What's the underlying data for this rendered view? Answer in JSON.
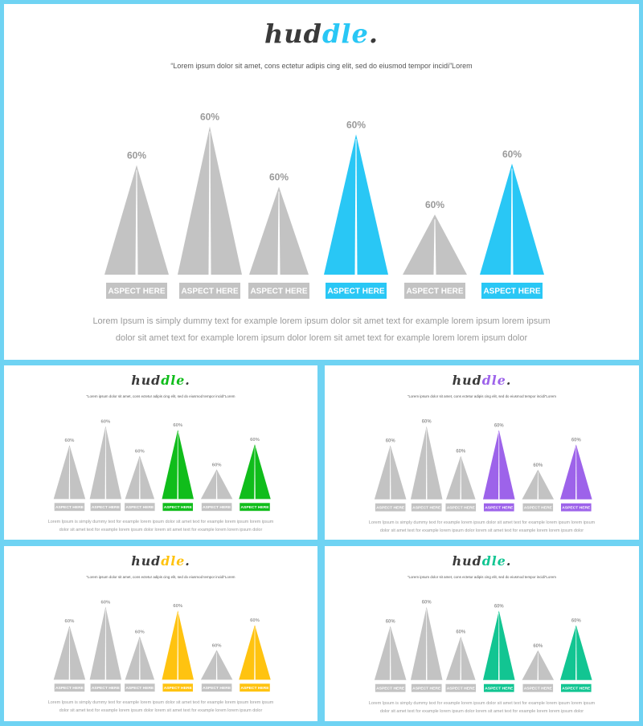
{
  "brand": {
    "prefix": "hud",
    "suffix": "dle",
    "dot": "."
  },
  "subtitle": "“Lorem ipsum dolor sit amet, cons ectetur adipis cing elit, sed do eiusmod tempor  incidi”Lorem",
  "description": {
    "line1": "Lorem Ipsum is simply dummy text for example lorem ipsum dolor sit amet text for example lorem ipsum lorem ipsum",
    "line2": "dolor sit amet text for example lorem ipsum dolor lorem sit amet text for example lorem lorem ipsum dolor"
  },
  "neutral_color": "#c3c3c3",
  "slides": [
    {
      "id": "main",
      "accent": "#29c7f5"
    },
    {
      "id": "green",
      "accent": "#10bd1b"
    },
    {
      "id": "purple",
      "accent": "#9d63ea"
    },
    {
      "id": "yellow",
      "accent": "#ffc310"
    },
    {
      "id": "teal",
      "accent": "#12c592"
    }
  ],
  "chart_data": {
    "type": "bar",
    "categories": [
      "ASPECT HERE",
      "ASPECT HERE",
      "ASPECT HERE",
      "ASPECT HERE",
      "ASPECT HERE",
      "ASPECT HERE"
    ],
    "values": [
      60,
      60,
      60,
      60,
      60,
      60
    ],
    "value_labels": [
      "60%",
      "60%",
      "60%",
      "60%",
      "60%",
      "60%"
    ],
    "relative_heights": [
      0.71,
      0.96,
      0.57,
      0.91,
      0.39,
      0.72
    ],
    "highlighted": [
      false,
      false,
      false,
      true,
      false,
      true
    ]
  }
}
